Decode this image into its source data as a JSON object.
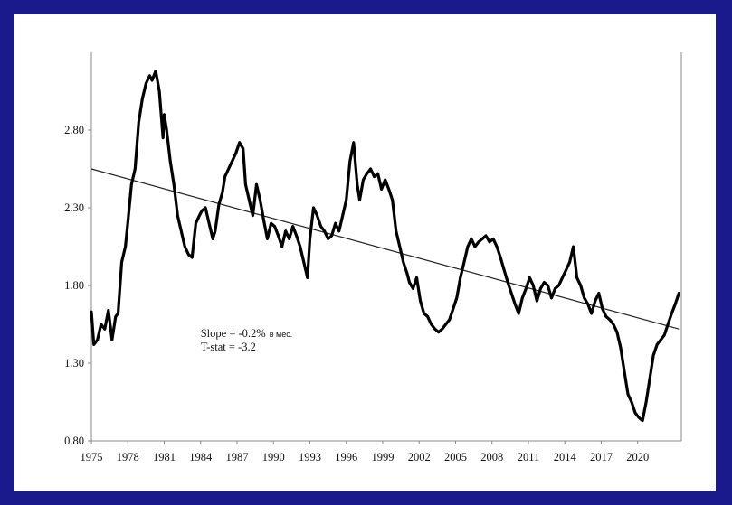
{
  "page": {
    "background": "#1a1a8c",
    "panel": "#ffffff"
  },
  "chart_data": {
    "type": "line",
    "title": "",
    "xlabel": "",
    "ylabel": "",
    "xlim": [
      1975.0,
      2023.6
    ],
    "ylim": [
      0.8,
      3.3
    ],
    "y_ticks": [
      0.8,
      1.3,
      1.8,
      2.3,
      2.8
    ],
    "y_tick_labels": [
      "0.80",
      "1.30",
      "1.80",
      "2.30",
      "2.80"
    ],
    "x_ticks": [
      1975,
      1978,
      1981,
      1984,
      1987,
      1990,
      1993,
      1996,
      1999,
      2002,
      2005,
      2008,
      2011,
      2014,
      2017,
      2020
    ],
    "x_tick_labels": [
      "1975",
      "1978",
      "1981",
      "1984",
      "1987",
      "1990",
      "1993",
      "1996",
      "1999",
      "2002",
      "2005",
      "2008",
      "2011",
      "2014",
      "2017",
      "2020"
    ],
    "grid": false,
    "legend": "none",
    "series": [
      {
        "color": "#000000",
        "x": [
          1975.0,
          1975.2,
          1975.5,
          1975.8,
          1976.1,
          1976.4,
          1976.7,
          1977.0,
          1977.2,
          1977.5,
          1977.8,
          1978.0,
          1978.3,
          1978.6,
          1978.9,
          1979.2,
          1979.5,
          1979.8,
          1980.0,
          1980.3,
          1980.6,
          1980.9,
          1981.0,
          1981.2,
          1981.5,
          1981.8,
          1982.1,
          1982.4,
          1982.7,
          1983.0,
          1983.3,
          1983.6,
          1983.9,
          1984.1,
          1984.4,
          1984.7,
          1985.0,
          1985.2,
          1985.5,
          1985.8,
          1986.0,
          1986.3,
          1986.6,
          1986.9,
          1987.2,
          1987.5,
          1987.7,
          1988.0,
          1988.3,
          1988.6,
          1988.9,
          1989.2,
          1989.5,
          1989.8,
          1990.1,
          1990.4,
          1990.7,
          1991.0,
          1991.3,
          1991.6,
          1991.9,
          1992.2,
          1992.5,
          1992.8,
          1993.0,
          1993.3,
          1993.6,
          1993.9,
          1994.2,
          1994.5,
          1994.8,
          1995.1,
          1995.4,
          1995.7,
          1996.0,
          1996.3,
          1996.6,
          1996.9,
          1997.1,
          1997.4,
          1997.7,
          1998.0,
          1998.3,
          1998.6,
          1998.9,
          1999.2,
          1999.5,
          1999.8,
          2000.1,
          2000.4,
          2000.7,
          2001.0,
          2001.2,
          2001.5,
          2001.8,
          2002.1,
          2002.4,
          2002.7,
          2003.0,
          2003.3,
          2003.6,
          2003.9,
          2004.2,
          2004.5,
          2004.8,
          2005.1,
          2005.4,
          2005.7,
          2006.0,
          2006.3,
          2006.6,
          2006.9,
          2007.2,
          2007.5,
          2007.8,
          2008.1,
          2008.4,
          2008.7,
          2009.0,
          2009.3,
          2009.6,
          2009.9,
          2010.2,
          2010.5,
          2010.8,
          2011.1,
          2011.4,
          2011.7,
          2012.0,
          2012.3,
          2012.6,
          2012.9,
          2013.2,
          2013.5,
          2013.8,
          2014.1,
          2014.4,
          2014.7,
          2015.0,
          2015.3,
          2015.6,
          2015.9,
          2016.2,
          2016.5,
          2016.8,
          2017.1,
          2017.4,
          2017.7,
          2018.0,
          2018.3,
          2018.6,
          2018.9,
          2019.2,
          2019.5,
          2019.8,
          2020.1,
          2020.4,
          2020.7,
          2021.0,
          2021.3,
          2021.6,
          2021.9,
          2022.2,
          2022.5,
          2022.8,
          2023.1,
          2023.4
        ],
        "y": [
          1.63,
          1.42,
          1.45,
          1.55,
          1.52,
          1.64,
          1.45,
          1.6,
          1.62,
          1.95,
          2.05,
          2.2,
          2.45,
          2.55,
          2.85,
          3.0,
          3.1,
          3.15,
          3.12,
          3.18,
          3.05,
          2.75,
          2.9,
          2.8,
          2.6,
          2.45,
          2.25,
          2.15,
          2.05,
          2.0,
          1.98,
          2.2,
          2.25,
          2.28,
          2.3,
          2.2,
          2.1,
          2.15,
          2.32,
          2.4,
          2.5,
          2.55,
          2.6,
          2.65,
          2.72,
          2.68,
          2.45,
          2.35,
          2.25,
          2.45,
          2.35,
          2.22,
          2.1,
          2.2,
          2.18,
          2.12,
          2.05,
          2.15,
          2.1,
          2.18,
          2.12,
          2.05,
          1.95,
          1.85,
          2.1,
          2.3,
          2.25,
          2.18,
          2.15,
          2.1,
          2.12,
          2.2,
          2.15,
          2.25,
          2.35,
          2.6,
          2.72,
          2.45,
          2.35,
          2.48,
          2.52,
          2.55,
          2.5,
          2.52,
          2.42,
          2.48,
          2.42,
          2.35,
          2.15,
          2.05,
          1.95,
          1.88,
          1.82,
          1.78,
          1.85,
          1.7,
          1.62,
          1.6,
          1.55,
          1.52,
          1.5,
          1.52,
          1.55,
          1.58,
          1.65,
          1.72,
          1.85,
          1.95,
          2.05,
          2.1,
          2.05,
          2.08,
          2.1,
          2.12,
          2.08,
          2.1,
          2.05,
          1.98,
          1.9,
          1.82,
          1.75,
          1.68,
          1.62,
          1.72,
          1.78,
          1.85,
          1.8,
          1.7,
          1.78,
          1.82,
          1.8,
          1.72,
          1.78,
          1.8,
          1.85,
          1.9,
          1.95,
          2.05,
          1.85,
          1.8,
          1.72,
          1.68,
          1.62,
          1.7,
          1.75,
          1.65,
          1.6,
          1.58,
          1.55,
          1.5,
          1.4,
          1.25,
          1.1,
          1.05,
          0.98,
          0.95,
          0.93,
          1.05,
          1.2,
          1.35,
          1.42,
          1.45,
          1.48,
          1.55,
          1.62,
          1.68,
          1.75
        ]
      }
    ],
    "trend_line": {
      "x": [
        1975.0,
        2023.4
      ],
      "y": [
        2.55,
        1.52
      ]
    },
    "annotations": [
      {
        "text": "Slope = -0.2%",
        "suffix": "в мес.",
        "x": 1984.0,
        "y": 1.47
      },
      {
        "text": "T-stat = -3.2",
        "x": 1984.0,
        "y": 1.38
      }
    ]
  }
}
